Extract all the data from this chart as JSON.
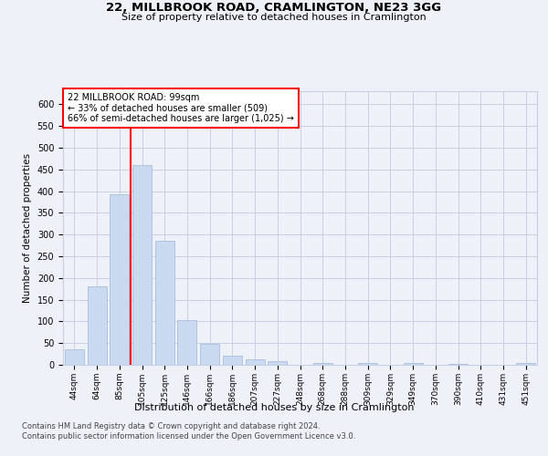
{
  "title_line1": "22, MILLBROOK ROAD, CRAMLINGTON, NE23 3GG",
  "title_line2": "Size of property relative to detached houses in Cramlington",
  "xlabel": "Distribution of detached houses by size in Cramlington",
  "ylabel": "Number of detached properties",
  "annotation_text": "22 MILLBROOK ROAD: 99sqm\n← 33% of detached houses are smaller (509)\n66% of semi-detached houses are larger (1,025) →",
  "footer_line1": "Contains HM Land Registry data © Crown copyright and database right 2024.",
  "footer_line2": "Contains public sector information licensed under the Open Government Licence v3.0.",
  "bar_labels": [
    "44sqm",
    "64sqm",
    "85sqm",
    "105sqm",
    "125sqm",
    "146sqm",
    "166sqm",
    "186sqm",
    "207sqm",
    "227sqm",
    "248sqm",
    "268sqm",
    "288sqm",
    "309sqm",
    "329sqm",
    "349sqm",
    "370sqm",
    "390sqm",
    "410sqm",
    "431sqm",
    "451sqm"
  ],
  "bar_values": [
    35,
    180,
    392,
    460,
    285,
    102,
    48,
    20,
    13,
    8,
    0,
    4,
    0,
    5,
    0,
    4,
    0,
    3,
    0,
    0,
    5
  ],
  "bar_color": "#c9d9f0",
  "bar_edge_color": "#a0b8d8",
  "vline_x_index": 3,
  "vline_color": "red",
  "annotation_box_color": "red",
  "annotation_box_fill": "white",
  "grid_color": "#c8d0e0",
  "ylim": [
    0,
    630
  ],
  "yticks": [
    0,
    50,
    100,
    150,
    200,
    250,
    300,
    350,
    400,
    450,
    500,
    550,
    600
  ],
  "background_color": "#eef2f8"
}
